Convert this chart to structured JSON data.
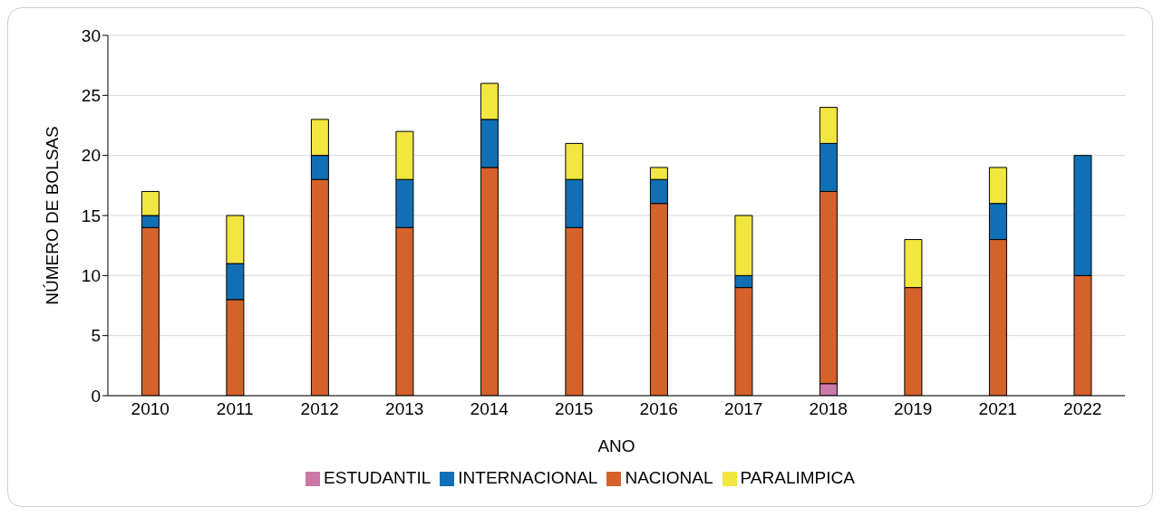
{
  "chart_data": {
    "type": "bar",
    "stacked": true,
    "xlabel": "ANO",
    "ylabel": "NÚMERO DE BOLSAS",
    "categories": [
      "2010",
      "2011",
      "2012",
      "2013",
      "2014",
      "2015",
      "2016",
      "2017",
      "2018",
      "2019",
      "2021",
      "2022"
    ],
    "series": [
      {
        "name": "ESTUDANTIL",
        "color": "#cc79a7",
        "values": [
          0,
          0,
          0,
          0,
          0,
          0,
          0,
          0,
          1,
          0,
          0,
          0
        ]
      },
      {
        "name": "NACIONAL",
        "color": "#d4622a",
        "values": [
          14,
          8,
          18,
          14,
          19,
          14,
          16,
          9,
          16,
          9,
          13,
          10
        ]
      },
      {
        "name": "INTERNACIONAL",
        "color": "#1170b5",
        "values": [
          1,
          3,
          2,
          4,
          4,
          4,
          2,
          1,
          4,
          0,
          3,
          10
        ]
      },
      {
        "name": "PARALIMPICA",
        "color": "#f2e641",
        "values": [
          2,
          4,
          3,
          4,
          3,
          3,
          1,
          5,
          3,
          4,
          3,
          0
        ]
      }
    ],
    "ylim": [
      0,
      30
    ],
    "yticks": [
      0,
      5,
      10,
      15,
      20,
      25,
      30
    ],
    "grid": "y",
    "legend": "bottom"
  }
}
